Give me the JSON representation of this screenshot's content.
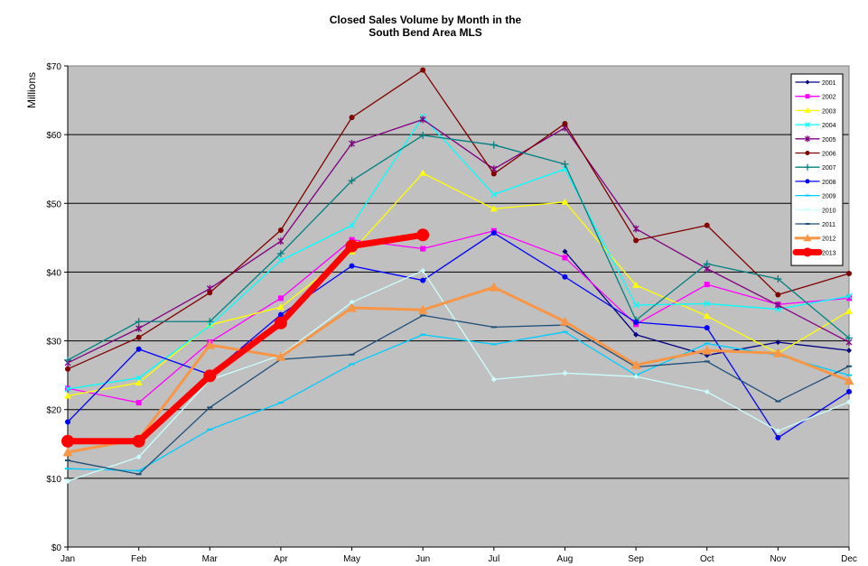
{
  "chart_data": {
    "type": "line",
    "title_line1": "Closed Sales Volume by Month in the",
    "title_line2": "South Bend Area MLS",
    "xlabel": "",
    "ylabel": "Millions",
    "categories": [
      "Jan",
      "Feb",
      "Mar",
      "Apr",
      "May",
      "Jun",
      "Jul",
      "Aug",
      "Sep",
      "Oct",
      "Nov",
      "Dec"
    ],
    "yticks": [
      "$0",
      "$10",
      "$20",
      "$30",
      "$40",
      "$50",
      "$60",
      "$70"
    ],
    "ylim": [
      0,
      70
    ],
    "grid": "horizontal",
    "legend_position": "top-right",
    "plot_background": "#c0c0c0",
    "series": [
      {
        "name": "2001",
        "color": "#000080",
        "marker": "diamond",
        "values": [
          null,
          null,
          null,
          null,
          null,
          null,
          null,
          43.0,
          30.9,
          27.9,
          29.8,
          28.6
        ]
      },
      {
        "name": "2002",
        "color": "#ff00ff",
        "marker": "square",
        "values": [
          23.1,
          21.0,
          29.8,
          36.2,
          44.7,
          43.4,
          46.0,
          42.1,
          32.4,
          38.2,
          35.3,
          36.2
        ]
      },
      {
        "name": "2003",
        "color": "#ffff00",
        "marker": "triangle",
        "values": [
          22.0,
          23.9,
          32.3,
          34.9,
          43.0,
          54.4,
          49.2,
          50.2,
          38.1,
          33.6,
          28.2,
          34.3
        ]
      },
      {
        "name": "2004",
        "color": "#00ffff",
        "marker": "x",
        "values": [
          23.0,
          24.6,
          32.2,
          41.7,
          46.8,
          62.6,
          51.3,
          55.0,
          35.2,
          35.4,
          34.6,
          36.5
        ]
      },
      {
        "name": "2005",
        "color": "#800080",
        "marker": "star",
        "values": [
          26.8,
          31.8,
          37.6,
          44.5,
          58.7,
          62.2,
          55.0,
          61.0,
          46.3,
          40.5,
          35.2,
          29.8
        ]
      },
      {
        "name": "2006",
        "color": "#800000",
        "marker": "circle",
        "values": [
          25.9,
          30.5,
          37.0,
          46.1,
          62.5,
          69.4,
          54.3,
          61.6,
          44.6,
          46.8,
          36.7,
          39.8
        ]
      },
      {
        "name": "2007",
        "color": "#008080",
        "marker": "plus",
        "values": [
          27.2,
          32.8,
          32.8,
          42.7,
          53.3,
          59.9,
          58.5,
          55.7,
          33.0,
          41.2,
          39.0,
          30.4
        ]
      },
      {
        "name": "2008",
        "color": "#0000ff",
        "marker": "circle",
        "values": [
          18.2,
          28.8,
          25.1,
          33.8,
          40.9,
          38.8,
          45.7,
          39.3,
          32.7,
          31.9,
          15.9,
          22.6
        ]
      },
      {
        "name": "2009",
        "color": "#00ccff",
        "marker": "dash",
        "values": [
          11.4,
          11.1,
          17.1,
          21.0,
          26.6,
          30.9,
          29.5,
          31.3,
          25.0,
          29.6,
          27.9,
          25.0
        ]
      },
      {
        "name": "2010",
        "color": "#ccffff",
        "marker": "diamond",
        "values": [
          9.6,
          13.1,
          24.3,
          27.9,
          35.6,
          40.2,
          24.4,
          25.3,
          24.8,
          22.6,
          16.9,
          21.1
        ]
      },
      {
        "name": "2011",
        "color": "#1f4e79",
        "marker": "dash",
        "values": [
          12.6,
          10.6,
          20.3,
          27.3,
          28.0,
          33.7,
          32.0,
          32.3,
          26.2,
          27.0,
          21.2,
          26.3
        ]
      },
      {
        "name": "2012",
        "color": "#f79646",
        "marker": "triangle",
        "width": 3,
        "values": [
          13.8,
          15.7,
          29.4,
          27.7,
          34.8,
          34.5,
          37.8,
          32.8,
          26.5,
          28.6,
          28.2,
          24.2
        ]
      },
      {
        "name": "2013",
        "color": "#ff0000",
        "marker": "circle",
        "width": 7,
        "values": [
          15.4,
          15.4,
          24.9,
          32.6,
          43.8,
          45.4,
          null,
          null,
          null,
          null,
          null,
          null
        ]
      }
    ]
  }
}
